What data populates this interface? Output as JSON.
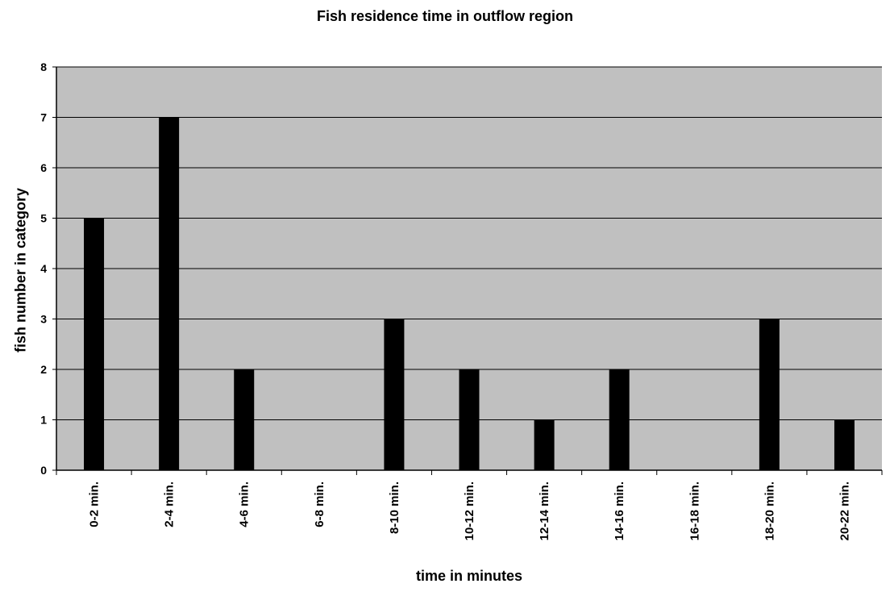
{
  "chart_data": {
    "type": "bar",
    "title": "Fish residence time in outflow region",
    "xlabel": "time in minutes",
    "ylabel": "fish number in category",
    "categories": [
      "0-2 min.",
      "2-4 min.",
      "4-6 min.",
      "6-8 min.",
      "8-10 min.",
      "10-12 min.",
      "12-14 min.",
      "14-16 min.",
      "16-18 min.",
      "18-20 min.",
      "20-22 min."
    ],
    "values": [
      5,
      7,
      2,
      0,
      3,
      2,
      1,
      2,
      0,
      3,
      1
    ],
    "ylim": [
      0,
      8
    ],
    "yticks": [
      "0",
      "1",
      "2",
      "3",
      "4",
      "5",
      "6",
      "7",
      "8"
    ],
    "grid": true,
    "legend": "none",
    "colors": {
      "plot_background": "#c0c0c0",
      "bar": "#000000",
      "gridline": "#000000"
    }
  }
}
